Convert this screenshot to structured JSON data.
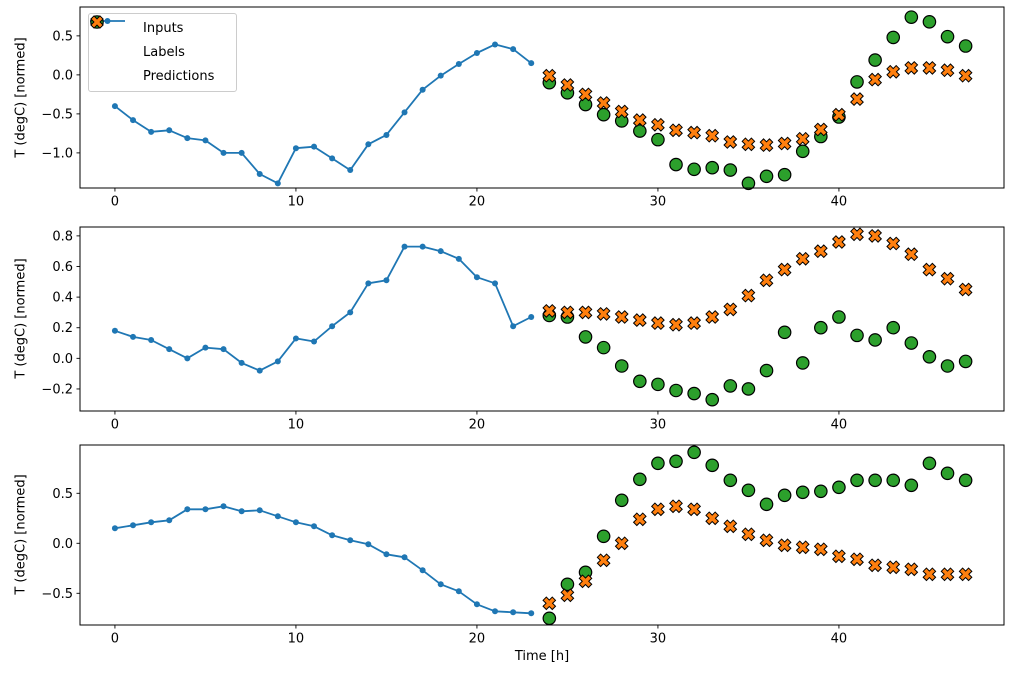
{
  "figure": {
    "xlabel": "Time [h]",
    "ylabel": "T (degC) [normed]",
    "background": "#ffffff",
    "colors": {
      "inputs": "#1f77b4",
      "labels": "#2ca02c",
      "predictions": "#ff7f0e",
      "marker_edge": "#000000",
      "spine": "#000000",
      "legend_border": "#cccccc"
    },
    "legend": {
      "position": "upper left",
      "items": [
        {
          "label": "Inputs",
          "marker": "line-with-dot"
        },
        {
          "label": "Labels",
          "marker": "filled-circle"
        },
        {
          "label": "Predictions",
          "marker": "filled-x"
        }
      ]
    }
  },
  "chart_data": [
    {
      "type": "line",
      "title": "",
      "xlabel": "",
      "ylabel": "T (degC) [normed]",
      "grid": false,
      "xticks": [
        0,
        10,
        20,
        30,
        40
      ],
      "yticks": [
        0.5,
        0.0,
        -0.5,
        -1.0
      ],
      "xlim": [
        -1.93,
        49.12
      ],
      "ylim": [
        -1.45,
        0.87
      ],
      "series": [
        {
          "name": "Inputs",
          "kind": "line+dots",
          "x": [
            0,
            1,
            2,
            3,
            4,
            5,
            6,
            7,
            8,
            9,
            10,
            11,
            12,
            13,
            14,
            15,
            16,
            17,
            18,
            19,
            20,
            21,
            22,
            23
          ],
          "y": [
            -0.4,
            -0.58,
            -0.73,
            -0.71,
            -0.81,
            -0.84,
            -1.0,
            -1.0,
            -1.27,
            -1.39,
            -0.94,
            -0.92,
            -1.07,
            -1.22,
            -0.89,
            -0.77,
            -0.48,
            -0.19,
            -0.01,
            0.14,
            0.28,
            0.39,
            0.33,
            0.15
          ]
        },
        {
          "name": "Labels",
          "kind": "scatter-circle",
          "x": [
            24,
            25,
            26,
            27,
            28,
            29,
            30,
            31,
            32,
            33,
            34,
            35,
            36,
            37,
            38,
            39,
            40,
            41,
            42,
            43,
            44,
            45,
            46,
            47
          ],
          "y": [
            -0.1,
            -0.23,
            -0.38,
            -0.51,
            -0.59,
            -0.72,
            -0.83,
            -1.15,
            -1.21,
            -1.19,
            -1.22,
            -1.39,
            -1.3,
            -1.28,
            -0.98,
            -0.79,
            -0.54,
            -0.09,
            0.19,
            0.48,
            0.74,
            0.68,
            0.49,
            0.37
          ]
        },
        {
          "name": "Predictions",
          "kind": "scatter-x",
          "x": [
            24,
            25,
            26,
            27,
            28,
            29,
            30,
            31,
            32,
            33,
            34,
            35,
            36,
            37,
            38,
            39,
            40,
            41,
            42,
            43,
            44,
            45,
            46,
            47
          ],
          "y": [
            -0.01,
            -0.13,
            -0.25,
            -0.36,
            -0.47,
            -0.58,
            -0.64,
            -0.71,
            -0.74,
            -0.78,
            -0.86,
            -0.89,
            -0.9,
            -0.88,
            -0.82,
            -0.7,
            -0.51,
            -0.31,
            -0.06,
            0.04,
            0.09,
            0.09,
            0.06,
            -0.01
          ]
        }
      ]
    },
    {
      "type": "line",
      "title": "",
      "xlabel": "",
      "ylabel": "T (degC) [normed]",
      "grid": false,
      "xticks": [
        0,
        10,
        20,
        30,
        40
      ],
      "yticks": [
        0.8,
        0.6,
        0.4,
        0.2,
        0.0,
        -0.2
      ],
      "xlim": [
        -1.93,
        49.12
      ],
      "ylim": [
        -0.344,
        0.858
      ],
      "series": [
        {
          "name": "Inputs",
          "kind": "line+dots",
          "x": [
            0,
            1,
            2,
            3,
            4,
            5,
            6,
            7,
            8,
            9,
            10,
            11,
            12,
            13,
            14,
            15,
            16,
            17,
            18,
            19,
            20,
            21,
            22,
            23
          ],
          "y": [
            0.18,
            0.14,
            0.12,
            0.06,
            0.0,
            0.07,
            0.06,
            -0.03,
            -0.08,
            -0.02,
            0.13,
            0.11,
            0.21,
            0.3,
            0.49,
            0.51,
            0.73,
            0.73,
            0.7,
            0.65,
            0.53,
            0.49,
            0.21,
            0.27
          ]
        },
        {
          "name": "Labels",
          "kind": "scatter-circle",
          "x": [
            24,
            25,
            26,
            27,
            28,
            29,
            30,
            31,
            32,
            33,
            34,
            35,
            36,
            37,
            38,
            39,
            40,
            41,
            42,
            43,
            44,
            45,
            46,
            47
          ],
          "y": [
            0.28,
            0.27,
            0.14,
            0.07,
            -0.05,
            -0.15,
            -0.17,
            -0.21,
            -0.23,
            -0.27,
            -0.18,
            -0.2,
            -0.08,
            0.17,
            -0.03,
            0.2,
            0.27,
            0.15,
            0.12,
            0.2,
            0.1,
            0.01,
            -0.05,
            -0.02
          ]
        },
        {
          "name": "Predictions",
          "kind": "scatter-x",
          "x": [
            24,
            25,
            26,
            27,
            28,
            29,
            30,
            31,
            32,
            33,
            34,
            35,
            36,
            37,
            38,
            39,
            40,
            41,
            42,
            43,
            44,
            45,
            46,
            47
          ],
          "y": [
            0.31,
            0.3,
            0.3,
            0.29,
            0.27,
            0.25,
            0.23,
            0.22,
            0.23,
            0.27,
            0.32,
            0.41,
            0.51,
            0.58,
            0.65,
            0.7,
            0.76,
            0.81,
            0.8,
            0.75,
            0.68,
            0.58,
            0.52,
            0.45
          ]
        }
      ]
    },
    {
      "type": "line",
      "title": "",
      "xlabel": "Time [h]",
      "ylabel": "T (degC) [normed]",
      "grid": false,
      "xticks": [
        0,
        10,
        20,
        30,
        40
      ],
      "yticks": [
        0.5,
        0.0,
        -0.5
      ],
      "xlim": [
        -1.93,
        49.12
      ],
      "ylim": [
        -0.817,
        0.983
      ],
      "series": [
        {
          "name": "Inputs",
          "kind": "line+dots",
          "x": [
            0,
            1,
            2,
            3,
            4,
            5,
            6,
            7,
            8,
            9,
            10,
            11,
            12,
            13,
            14,
            15,
            16,
            17,
            18,
            19,
            20,
            21,
            22,
            23
          ],
          "y": [
            0.15,
            0.18,
            0.21,
            0.23,
            0.34,
            0.34,
            0.37,
            0.32,
            0.33,
            0.27,
            0.21,
            0.17,
            0.08,
            0.03,
            -0.01,
            -0.11,
            -0.14,
            -0.27,
            -0.41,
            -0.48,
            -0.61,
            -0.68,
            -0.69,
            -0.7
          ]
        },
        {
          "name": "Labels",
          "kind": "scatter-circle",
          "x": [
            24,
            25,
            26,
            27,
            28,
            29,
            30,
            31,
            32,
            33,
            34,
            35,
            36,
            37,
            38,
            39,
            40,
            41,
            42,
            43,
            44,
            45,
            46,
            47
          ],
          "y": [
            -0.75,
            -0.41,
            -0.29,
            0.07,
            0.43,
            0.64,
            0.8,
            0.82,
            0.91,
            0.78,
            0.63,
            0.53,
            0.39,
            0.48,
            0.51,
            0.52,
            0.56,
            0.63,
            0.63,
            0.63,
            0.58,
            0.8,
            0.7,
            0.63
          ]
        },
        {
          "name": "Predictions",
          "kind": "scatter-x",
          "x": [
            24,
            25,
            26,
            27,
            28,
            29,
            30,
            31,
            32,
            33,
            34,
            35,
            36,
            37,
            38,
            39,
            40,
            41,
            42,
            43,
            44,
            45,
            46,
            47
          ],
          "y": [
            -0.6,
            -0.52,
            -0.38,
            -0.17,
            0.0,
            0.24,
            0.34,
            0.37,
            0.34,
            0.25,
            0.17,
            0.09,
            0.03,
            -0.02,
            -0.04,
            -0.06,
            -0.13,
            -0.16,
            -0.22,
            -0.24,
            -0.26,
            -0.31,
            -0.31,
            -0.31
          ]
        }
      ]
    }
  ]
}
